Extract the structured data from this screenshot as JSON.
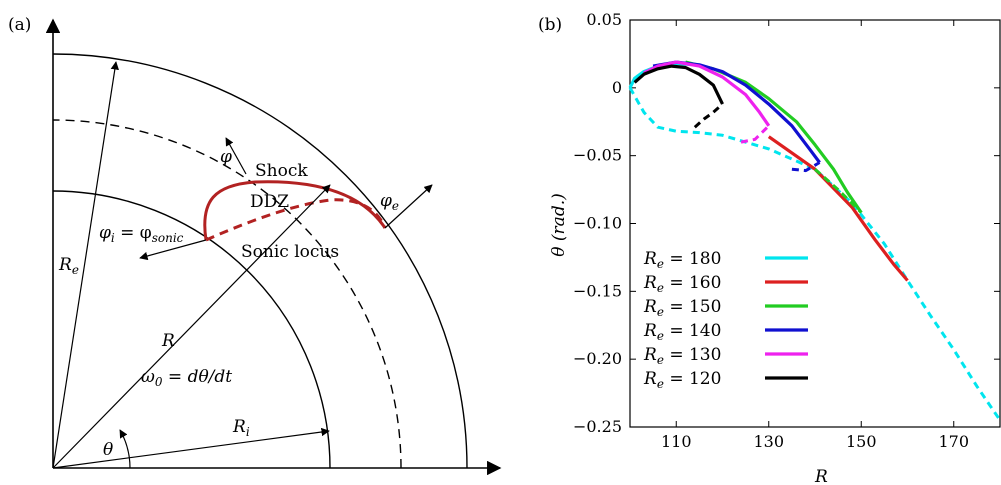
{
  "panel_a": {
    "label": "(a)",
    "labels": {
      "shock": "Shock",
      "ddz": "DDZ",
      "sonic_locus": "Sonic locus",
      "phi": "φ",
      "phi_e_base": "φ",
      "phi_e_sub": "e",
      "phi_i_base": "φ",
      "phi_i_sub": "i",
      "phi_i_eq": " = φ",
      "phi_i_sub2": "sonic",
      "R_e_base": "R",
      "R_e_sub": "e",
      "R": "R",
      "R_i_base": "R",
      "R_i_sub": "i",
      "omega": "ω",
      "omega_sub": "0",
      "omega_eq": " = dθ/dt",
      "theta": "θ"
    },
    "colors": {
      "shock": "#b22222",
      "lines": "#000000"
    }
  },
  "panel_b": {
    "label": "(b)",
    "chart_data": {
      "type": "line",
      "xlabel": "R",
      "ylabel": "θ (rad.)",
      "xlim": [
        100,
        180
      ],
      "ylim": [
        -0.25,
        0.05
      ],
      "xticks": [
        "110",
        "130",
        "150",
        "170"
      ],
      "yticks": [
        "0.05",
        "0",
        "−0.05",
        "−0.10",
        "−0.15",
        "−0.20",
        "−0.25"
      ],
      "legend_position": "lower-left",
      "series": [
        {
          "name": "R_e = 180",
          "label_base": "R",
          "label_sub": "e",
          "label_val": " = 180",
          "color": "#00e5ee",
          "upper": [
            [
              100,
              0
            ],
            [
              101,
              0.007
            ],
            [
              103,
              0.012
            ],
            [
              106,
              0.016
            ],
            [
              110,
              0.018
            ],
            [
              114,
              0.017
            ]
          ],
          "lower": [
            [
              100,
              0
            ],
            [
              103,
              -0.018
            ],
            [
              106,
              -0.029
            ],
            [
              110,
              -0.032
            ],
            [
              115,
              -0.033
            ],
            [
              120,
              -0.035
            ],
            [
              130,
              -0.045
            ],
            [
              140,
              -0.06
            ],
            [
              148,
              -0.085
            ],
            [
              155,
              -0.115
            ],
            [
              160,
              -0.142
            ],
            [
              165,
              -0.168
            ],
            [
              170,
              -0.193
            ],
            [
              175,
              -0.22
            ],
            [
              180,
              -0.245
            ]
          ]
        },
        {
          "name": "R_e = 160",
          "label_base": "R",
          "label_sub": "e",
          "label_val": " = 160",
          "color": "#dd2020",
          "upper": [
            [
              130,
              -0.036
            ],
            [
              140,
              -0.06
            ],
            [
              148,
              -0.088
            ],
            [
              153,
              -0.112
            ],
            [
              157,
              -0.13
            ],
            [
              160,
              -0.142
            ]
          ],
          "lower": []
        },
        {
          "name": "R_e = 150",
          "label_base": "R",
          "label_sub": "e",
          "label_val": " = 150",
          "color": "#22cc22",
          "upper": [
            [
              112,
              0.019
            ],
            [
              118,
              0.014
            ],
            [
              125,
              0.004
            ],
            [
              130,
              -0.008
            ],
            [
              136,
              -0.025
            ],
            [
              140,
              -0.042
            ],
            [
              144,
              -0.06
            ],
            [
              147,
              -0.077
            ],
            [
              150,
              -0.092
            ]
          ],
          "lower": [
            [
              140,
              -0.06
            ],
            [
              145,
              -0.075
            ],
            [
              150,
              -0.092
            ]
          ]
        },
        {
          "name": "R_e = 140",
          "label_base": "R",
          "label_sub": "e",
          "label_val": " = 140",
          "color": "#1010d0",
          "upper": [
            [
              105,
              0.016
            ],
            [
              110,
              0.019
            ],
            [
              115,
              0.017
            ],
            [
              120,
              0.012
            ],
            [
              125,
              0.002
            ],
            [
              130,
              -0.012
            ],
            [
              135,
              -0.028
            ],
            [
              139,
              -0.046
            ],
            [
              141,
              -0.055
            ]
          ],
          "lower": [
            [
              135,
              -0.06
            ],
            [
              138,
              -0.061
            ],
            [
              141,
              -0.055
            ]
          ]
        },
        {
          "name": "R_e = 130",
          "label_base": "R",
          "label_sub": "e",
          "label_val": " = 130",
          "color": "#ee22ee",
          "upper": [
            [
              103,
              0.011
            ],
            [
              106,
              0.016
            ],
            [
              110,
              0.019
            ],
            [
              115,
              0.016
            ],
            [
              120,
              0.008
            ],
            [
              125,
              -0.005
            ],
            [
              128,
              -0.018
            ],
            [
              130,
              -0.028
            ]
          ],
          "lower": [
            [
              124,
              -0.04
            ],
            [
              127,
              -0.038
            ],
            [
              130,
              -0.028
            ]
          ]
        },
        {
          "name": "R_e = 120",
          "label_base": "R",
          "label_sub": "e",
          "label_val": " = 120",
          "color": "#000000",
          "upper": [
            [
              101,
              0.004
            ],
            [
              103,
              0.01
            ],
            [
              106,
              0.014
            ],
            [
              109,
              0.016
            ],
            [
              112,
              0.015
            ],
            [
              115,
              0.01
            ],
            [
              118,
              0.002
            ],
            [
              120,
              -0.012
            ]
          ],
          "lower": [
            [
              114,
              -0.029
            ],
            [
              116,
              -0.023
            ],
            [
              118,
              -0.018
            ],
            [
              120,
              -0.012
            ]
          ]
        }
      ]
    }
  }
}
